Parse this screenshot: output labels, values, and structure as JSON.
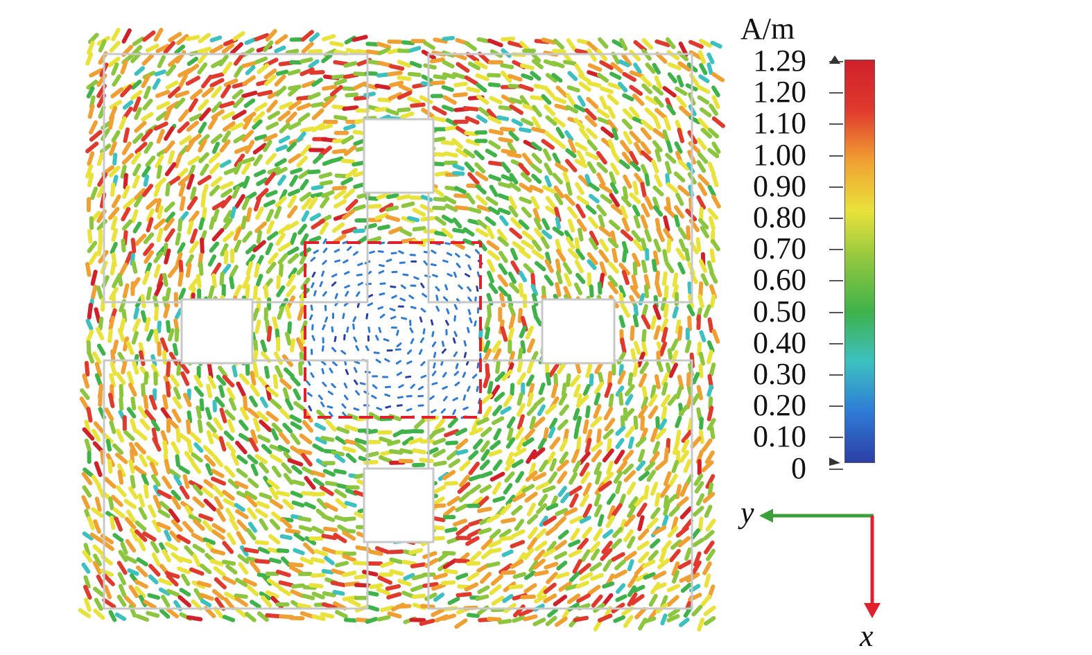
{
  "colorbar": {
    "unit": "A/m",
    "ticks": [
      "1.29",
      "1.20",
      "1.10",
      "1.00",
      "0.90",
      "0.80",
      "0.70",
      "0.60",
      "0.50",
      "0.40",
      "0.30",
      "0.20",
      "0.10",
      "0"
    ],
    "max": 1.29,
    "min": 0,
    "colors": [
      "#2c3fa5",
      "#2e7bd6",
      "#3cc0c0",
      "#3fb24a",
      "#8cc63f",
      "#e9e23a",
      "#f0a032",
      "#e03a2e",
      "#d0202a"
    ]
  },
  "axes": {
    "y_label": "y",
    "x_label": "x",
    "y_color": "#3aa13a",
    "x_color": "#e0202a"
  },
  "highlight": {
    "color": "#e0202a",
    "style": "dashed"
  }
}
